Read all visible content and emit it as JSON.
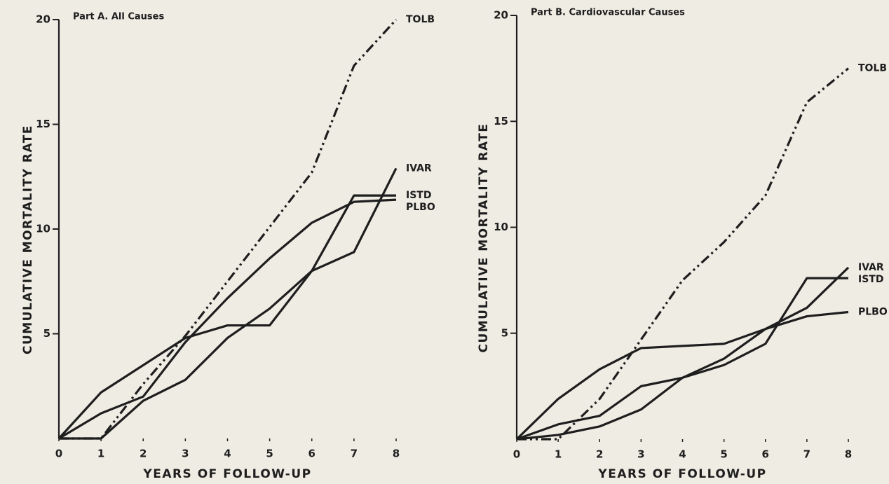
{
  "chart_data": [
    {
      "type": "line",
      "title": "Part A. All Causes",
      "x_label": "YEARS OF FOLLOW-UP",
      "y_label": "CUMULATIVE MORTALITY RATE",
      "x": [
        0,
        1,
        2,
        3,
        4,
        5,
        6,
        7,
        8
      ],
      "xlim": [
        0,
        8
      ],
      "xticks": [
        0,
        1,
        2,
        3,
        4,
        5,
        6,
        7,
        8
      ],
      "ylim": [
        0,
        20
      ],
      "yticks": [
        5,
        10,
        15,
        20
      ],
      "series": [
        {
          "name": "TOLB",
          "color": "#1e1e1e",
          "style": "dashdot",
          "values": [
            0,
            0,
            2.6,
            4.9,
            7.5,
            10.1,
            12.7,
            17.8,
            20
          ]
        },
        {
          "name": "IVAR",
          "color": "#1e1e1e",
          "style": "solid",
          "values": [
            0,
            2.2,
            3.5,
            4.8,
            5.4,
            5.4,
            8.0,
            8.9,
            12.9
          ]
        },
        {
          "name": "ISTD",
          "color": "#1e1e1e",
          "style": "solid",
          "values": [
            0,
            0,
            1.8,
            2.8,
            4.8,
            6.2,
            8.0,
            11.6,
            11.6
          ]
        },
        {
          "name": "PLBO",
          "color": "#1e1e1e",
          "style": "solid",
          "values": [
            0,
            1.2,
            2.0,
            4.6,
            6.7,
            8.6,
            10.3,
            11.3,
            11.4
          ]
        }
      ]
    },
    {
      "type": "line",
      "title": "Part B. Cardiovascular Causes",
      "x_label": "YEARS OF FOLLOW-UP",
      "y_label": "CUMULATIVE MORTALITY RATE",
      "x": [
        0,
        1,
        2,
        3,
        4,
        5,
        6,
        7,
        8
      ],
      "xlim": [
        0,
        8
      ],
      "xticks": [
        0,
        1,
        2,
        3,
        4,
        5,
        6,
        7,
        8
      ],
      "ylim": [
        0,
        20
      ],
      "yticks": [
        5,
        10,
        15,
        20
      ],
      "series": [
        {
          "name": "TOLB",
          "color": "#1e1e1e",
          "style": "dashdot",
          "values": [
            0,
            0,
            1.9,
            4.7,
            7.5,
            9.3,
            11.5,
            15.9,
            17.5
          ]
        },
        {
          "name": "IVAR",
          "color": "#1e1e1e",
          "style": "solid",
          "values": [
            0,
            0.2,
            0.6,
            1.4,
            2.9,
            3.8,
            5.2,
            6.2,
            8.1
          ]
        },
        {
          "name": "ISTD",
          "color": "#1e1e1e",
          "style": "solid",
          "values": [
            0,
            0.7,
            1.1,
            2.5,
            2.9,
            3.5,
            4.5,
            7.6,
            7.6
          ]
        },
        {
          "name": "PLBO",
          "color": "#1e1e1e",
          "style": "solid",
          "values": [
            0,
            1.9,
            3.3,
            4.3,
            4.4,
            4.5,
            5.2,
            5.8,
            6.0
          ]
        }
      ]
    }
  ]
}
